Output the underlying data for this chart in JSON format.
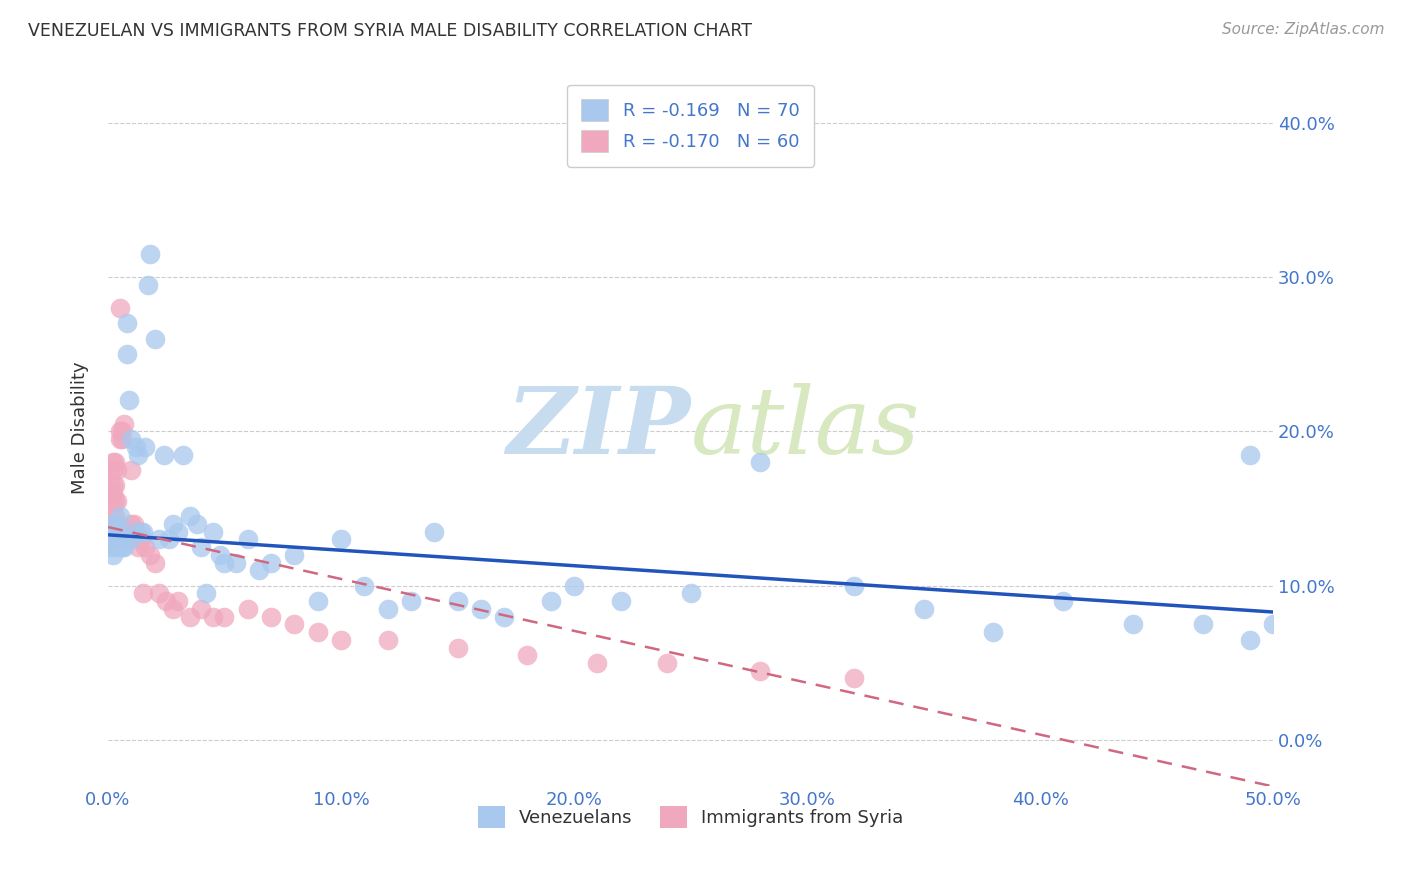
{
  "title": "VENEZUELAN VS IMMIGRANTS FROM SYRIA MALE DISABILITY CORRELATION CHART",
  "source": "Source: ZipAtlas.com",
  "ylabel": "Male Disability",
  "xlim": [
    0.0,
    0.5
  ],
  "ylim": [
    -0.03,
    0.435
  ],
  "xticks": [
    0.0,
    0.1,
    0.2,
    0.3,
    0.4,
    0.5
  ],
  "xtick_labels": [
    "0.0%",
    "10.0%",
    "20.0%",
    "30.0%",
    "40.0%",
    "50.0%"
  ],
  "yticks": [
    0.0,
    0.1,
    0.2,
    0.3,
    0.4
  ],
  "ytick_labels_right": [
    "0.0%",
    "10.0%",
    "20.0%",
    "30.0%",
    "40.0%"
  ],
  "legend_r1": "R = -0.169",
  "legend_n1": "N = 70",
  "legend_r2": "R = -0.170",
  "legend_n2": "N = 60",
  "watermark_zip": "ZIP",
  "watermark_atlas": "atlas",
  "blue_color": "#A8C8EE",
  "pink_color": "#F0A8BE",
  "blue_line_color": "#2255BB",
  "pink_line_color": "#D06880",
  "axis_color": "#4477CC",
  "text_color": "#333333",
  "venezuelans_x": [
    0.001,
    0.001,
    0.002,
    0.002,
    0.002,
    0.003,
    0.003,
    0.003,
    0.004,
    0.004,
    0.005,
    0.005,
    0.006,
    0.006,
    0.007,
    0.008,
    0.008,
    0.009,
    0.01,
    0.01,
    0.011,
    0.012,
    0.013,
    0.014,
    0.015,
    0.016,
    0.017,
    0.018,
    0.02,
    0.022,
    0.024,
    0.026,
    0.028,
    0.03,
    0.032,
    0.035,
    0.038,
    0.04,
    0.042,
    0.045,
    0.048,
    0.05,
    0.055,
    0.06,
    0.065,
    0.07,
    0.08,
    0.09,
    0.1,
    0.11,
    0.12,
    0.13,
    0.14,
    0.15,
    0.16,
    0.17,
    0.19,
    0.2,
    0.22,
    0.25,
    0.28,
    0.32,
    0.35,
    0.38,
    0.41,
    0.44,
    0.47,
    0.49,
    0.49,
    0.5
  ],
  "venezuelans_y": [
    0.13,
    0.125,
    0.14,
    0.13,
    0.12,
    0.135,
    0.13,
    0.125,
    0.14,
    0.135,
    0.125,
    0.145,
    0.13,
    0.125,
    0.125,
    0.25,
    0.27,
    0.22,
    0.13,
    0.195,
    0.135,
    0.19,
    0.185,
    0.135,
    0.135,
    0.19,
    0.295,
    0.315,
    0.26,
    0.13,
    0.185,
    0.13,
    0.14,
    0.135,
    0.185,
    0.145,
    0.14,
    0.125,
    0.095,
    0.135,
    0.12,
    0.115,
    0.115,
    0.13,
    0.11,
    0.115,
    0.12,
    0.09,
    0.13,
    0.1,
    0.085,
    0.09,
    0.135,
    0.09,
    0.085,
    0.08,
    0.09,
    0.1,
    0.09,
    0.095,
    0.18,
    0.1,
    0.085,
    0.07,
    0.09,
    0.075,
    0.075,
    0.185,
    0.065,
    0.075
  ],
  "syria_x": [
    0.001,
    0.001,
    0.001,
    0.001,
    0.001,
    0.002,
    0.002,
    0.002,
    0.002,
    0.002,
    0.002,
    0.003,
    0.003,
    0.003,
    0.003,
    0.003,
    0.004,
    0.004,
    0.004,
    0.004,
    0.005,
    0.005,
    0.005,
    0.005,
    0.006,
    0.006,
    0.007,
    0.007,
    0.008,
    0.009,
    0.01,
    0.01,
    0.011,
    0.012,
    0.013,
    0.014,
    0.015,
    0.016,
    0.018,
    0.02,
    0.022,
    0.025,
    0.028,
    0.03,
    0.035,
    0.04,
    0.045,
    0.05,
    0.06,
    0.07,
    0.08,
    0.09,
    0.1,
    0.12,
    0.15,
    0.18,
    0.21,
    0.24,
    0.28,
    0.32
  ],
  "syria_y": [
    0.13,
    0.14,
    0.135,
    0.175,
    0.165,
    0.175,
    0.165,
    0.155,
    0.18,
    0.16,
    0.145,
    0.18,
    0.165,
    0.155,
    0.145,
    0.135,
    0.175,
    0.155,
    0.14,
    0.135,
    0.28,
    0.2,
    0.195,
    0.135,
    0.2,
    0.195,
    0.205,
    0.135,
    0.135,
    0.13,
    0.175,
    0.14,
    0.14,
    0.135,
    0.125,
    0.13,
    0.095,
    0.125,
    0.12,
    0.115,
    0.095,
    0.09,
    0.085,
    0.09,
    0.08,
    0.085,
    0.08,
    0.08,
    0.085,
    0.08,
    0.075,
    0.07,
    0.065,
    0.065,
    0.06,
    0.055,
    0.05,
    0.05,
    0.045,
    0.04
  ],
  "blue_regline_x": [
    0.0,
    0.5
  ],
  "blue_regline_y": [
    0.133,
    0.083
  ],
  "pink_regline_x": [
    0.0,
    0.5
  ],
  "pink_regline_y": [
    0.138,
    -0.03
  ]
}
